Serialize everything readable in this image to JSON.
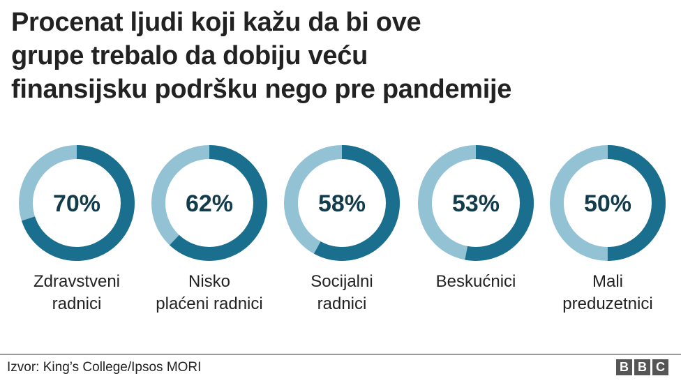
{
  "chart_data": {
    "type": "donut",
    "title_lines": [
      "Procenat ljudi koji kažu da bi ove",
      "grupe trebalo da dobiju veću",
      "finansijsku podršku nego pre pandemije"
    ],
    "categories": [
      [
        "Zdravstveni",
        "radnici"
      ],
      [
        "Nisko",
        "plaćeni radnici"
      ],
      [
        "Socijalni",
        "radnici"
      ],
      [
        "Beskućnici"
      ],
      [
        "Mali",
        "preduzetnici"
      ]
    ],
    "values": [
      70,
      62,
      58,
      53,
      50
    ],
    "value_labels": [
      "70%",
      "62%",
      "58%",
      "53%",
      "50%"
    ],
    "unit": "%",
    "colors": {
      "value": "#1a6e8e",
      "remainder": "#93c2d5",
      "label": "#123b4c"
    }
  },
  "footer": {
    "source": "Izvor: King’s College/Ipsos MORI",
    "logo": [
      "B",
      "B",
      "C"
    ]
  }
}
